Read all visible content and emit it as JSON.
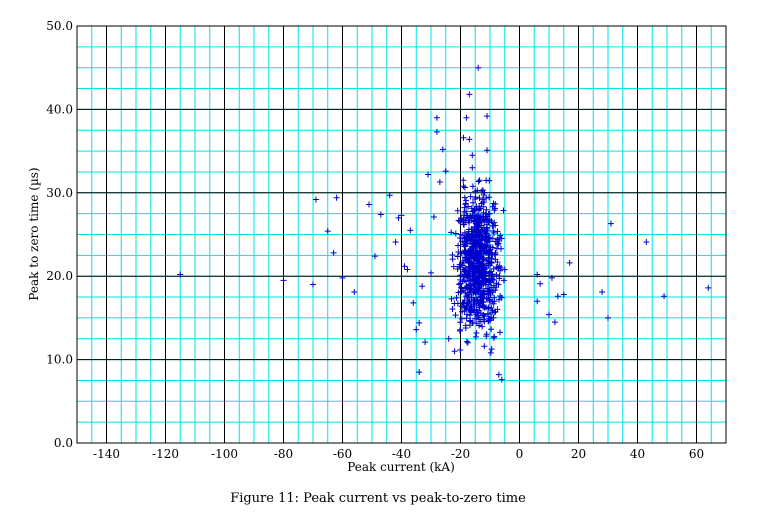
{
  "chart_data": {
    "type": "scatter",
    "caption": "Figure 11: Peak current vs peak-to-zero time",
    "xlabel": "Peak current (kA)",
    "ylabel": "Peak to zero time (µs)",
    "xlim": [
      -150,
      70
    ],
    "ylim": [
      0,
      50
    ],
    "x_ticks": [
      -140,
      -120,
      -100,
      -80,
      -60,
      -40,
      -20,
      0,
      20,
      40,
      60
    ],
    "y_ticks": [
      0,
      10,
      20,
      30,
      40,
      50
    ],
    "y_tick_labels": [
      "0.0",
      "10.0",
      "20.0",
      "30.0",
      "40.0",
      "50.0"
    ],
    "grid": true,
    "colors": {
      "grid_minor": "#00e5e5",
      "grid_major": "#000000",
      "marker": "#0000cc"
    },
    "marker": "+",
    "outlier_points": [
      [
        -115,
        20.2
      ],
      [
        -80,
        19.5
      ],
      [
        -70,
        19.0
      ],
      [
        -69,
        29.2
      ],
      [
        -65,
        25.4
      ],
      [
        -63,
        22.8
      ],
      [
        -62,
        29.4
      ],
      [
        -60,
        19.8
      ],
      [
        -56,
        18.1
      ],
      [
        -51,
        28.6
      ],
      [
        -49,
        22.4
      ],
      [
        -47,
        27.4
      ],
      [
        -44,
        29.7
      ],
      [
        -42,
        24.1
      ],
      [
        -41,
        27.0
      ],
      [
        -40,
        27.3
      ],
      [
        -39,
        21.2
      ],
      [
        -38,
        20.8
      ],
      [
        -37,
        25.5
      ],
      [
        -36,
        16.8
      ],
      [
        -35,
        13.6
      ],
      [
        -34,
        14.4
      ],
      [
        -34,
        8.5
      ],
      [
        -33,
        18.8
      ],
      [
        -32,
        12.1
      ],
      [
        -31,
        32.2
      ],
      [
        -30,
        20.4
      ],
      [
        -29,
        27.1
      ],
      [
        -28,
        37.3
      ],
      [
        -28,
        39.0
      ],
      [
        -27,
        31.3
      ],
      [
        -26,
        35.2
      ],
      [
        -25,
        32.6
      ],
      [
        -24,
        12.5
      ],
      [
        -22,
        11.0
      ],
      [
        -19,
        36.6
      ],
      [
        -18,
        39.0
      ],
      [
        -17,
        41.8
      ],
      [
        -17,
        36.4
      ],
      [
        -16,
        34.5
      ],
      [
        -16,
        33.0
      ],
      [
        -14,
        45.0
      ],
      [
        -11,
        39.2
      ],
      [
        -11,
        35.1
      ],
      [
        -7,
        8.2
      ],
      [
        -6,
        7.6
      ],
      [
        6,
        20.2
      ],
      [
        6,
        17.0
      ],
      [
        7,
        19.1
      ],
      [
        10,
        15.4
      ],
      [
        11,
        19.8
      ],
      [
        12,
        14.5
      ],
      [
        13,
        17.6
      ],
      [
        15,
        17.8
      ],
      [
        17,
        21.6
      ],
      [
        28,
        18.1
      ],
      [
        30,
        15.0
      ],
      [
        31,
        26.3
      ],
      [
        43,
        24.1
      ],
      [
        49,
        17.6
      ],
      [
        64,
        18.6
      ]
    ],
    "cluster": {
      "x_range": [
        -28,
        -5
      ],
      "y_range": [
        9.5,
        31.5
      ],
      "center_x": -14,
      "center_y": 21.5,
      "count": 800
    }
  }
}
